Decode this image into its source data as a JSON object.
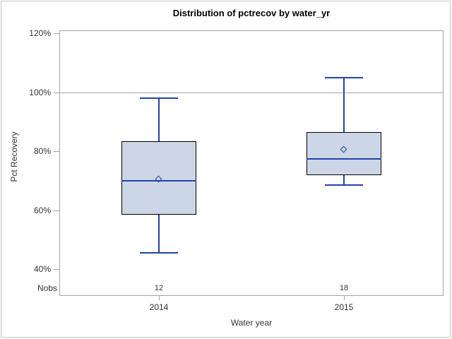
{
  "chart_data": {
    "type": "box",
    "title": "Distribution of pctrecov by water_yr",
    "xlabel": "Water year",
    "ylabel": "Pct Recovery",
    "categories": [
      "2014",
      "2015"
    ],
    "series": [
      {
        "name": "2014",
        "nobs": "12",
        "whisker_low": 45.5,
        "q1": 58.5,
        "median": 70,
        "mean": 70.5,
        "q3": 83.5,
        "whisker_high": 98
      },
      {
        "name": "2015",
        "nobs": "18",
        "whisker_low": 68.5,
        "q1": 72,
        "median": 77.5,
        "mean": 80.5,
        "q3": 86.5,
        "whisker_high": 105
      }
    ],
    "y_ticks": [
      120,
      100,
      80,
      60,
      40
    ],
    "y_tick_suffix": "%",
    "ylim": [
      31,
      121
    ],
    "reference_line": 100,
    "nobs_row_label": "Nobs",
    "grid": "off",
    "legend": "none"
  },
  "colors": {
    "box_fill": "#ccd6e6",
    "box_border": "#000000",
    "line_blue": "#2143a6",
    "frame_gray": "#a5a5a5",
    "outer_border": "#c6c6c6",
    "text": "#333333",
    "title_text": "#000000"
  }
}
